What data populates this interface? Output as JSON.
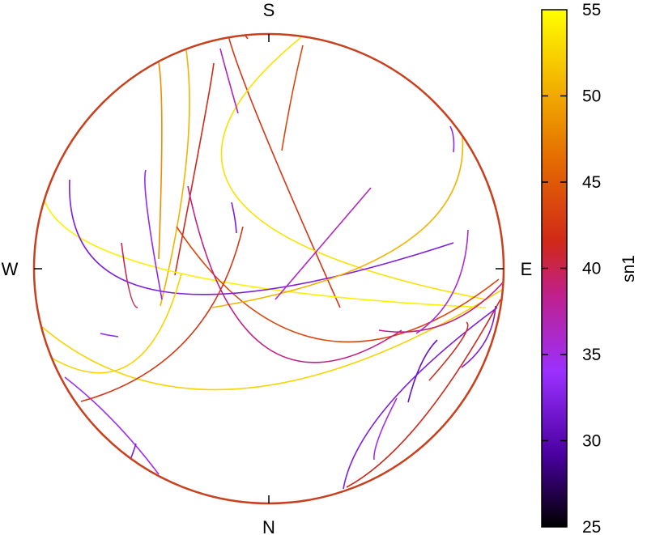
{
  "chart_data": {
    "type": "stereonet",
    "directions": {
      "top": "S",
      "bottom": "N",
      "left": "W",
      "right": "E"
    },
    "colorbar": {
      "label": "sn1",
      "min": 25,
      "max": 55,
      "ticks": [
        "55",
        "50",
        "45",
        "40",
        "35",
        "30",
        "25"
      ],
      "tick_values": [
        55,
        50,
        45,
        40,
        35,
        30,
        25
      ],
      "colormap": [
        "#000000",
        "#4a00a0",
        "#9b30ff",
        "#c0208a",
        "#d02818",
        "#e67000",
        "#f5c000",
        "#ffff00"
      ]
    },
    "arcs": [
      {
        "id": "a1",
        "from": [
          178,
          86
        ],
        "via": [
          198,
          95
        ],
        "to": [
          196,
          320
        ],
        "value": 48
      },
      {
        "id": "a2",
        "from": [
          52,
          404
        ],
        "via": [
          300,
          480
        ],
        "to": [
          625,
          355
        ],
        "value": 52
      },
      {
        "id": "a3",
        "from": [
          230,
          62
        ],
        "via": [
          230,
          200
        ],
        "to": [
          198,
          378
        ],
        "value": 50
      },
      {
        "id": "a4",
        "from": [
          264,
          78
        ],
        "via": [
          250,
          160
        ],
        "to": [
          216,
          340
        ],
        "value": 42
      },
      {
        "id": "a5",
        "from": [
          306,
          48
        ],
        "via": [
          290,
          70
        ],
        "to": [
          420,
          380
        ],
        "value": 43
      },
      {
        "id": "a6",
        "from": [
          372,
          46
        ],
        "via": [
          290,
          240
        ],
        "to": [
          600,
          370
        ],
        "value": 53
      },
      {
        "id": "a7",
        "from": [
          118,
          130
        ],
        "via": [
          110,
          300
        ],
        "to": [
          600,
          380
        ],
        "value": 54
      },
      {
        "id": "a8",
        "from": [
          218,
          280
        ],
        "via": [
          400,
          420
        ],
        "to": [
          616,
          345
        ],
        "value": 44
      },
      {
        "id": "a9",
        "from": [
          86,
          222
        ],
        "via": [
          200,
          360
        ],
        "to": [
          560,
          300
        ],
        "value": 32
      },
      {
        "id": "a10",
        "from": [
          571,
          168
        ],
        "via": [
          500,
          300
        ],
        "to": [
          262,
          380
        ],
        "value": 50
      },
      {
        "id": "a11",
        "from": [
          80,
          466
        ],
        "via": [
          140,
          520
        ],
        "to": [
          196,
          586
        ],
        "value": 34
      },
      {
        "id": "a12",
        "from": [
          100,
          496
        ],
        "via": [
          230,
          420
        ],
        "to": [
          300,
          280
        ],
        "value": 43
      },
      {
        "id": "a13",
        "from": [
          60,
          440
        ],
        "via": [
          160,
          450
        ],
        "to": [
          224,
          338
        ],
        "value": 52
      },
      {
        "id": "a14",
        "from": [
          622,
          348
        ],
        "via": [
          550,
          400
        ],
        "to": [
          468,
          408
        ],
        "value": 38
      },
      {
        "id": "a15",
        "from": [
          618,
          370
        ],
        "via": [
          520,
          520
        ],
        "to": [
          428,
          602
        ],
        "value": 42
      },
      {
        "id": "a16",
        "from": [
          424,
          604
        ],
        "via": [
          480,
          500
        ],
        "to": [
          614,
          380
        ],
        "value": 32
      },
      {
        "id": "a17",
        "from": [
          348,
          186
        ],
        "via": [
          360,
          120
        ],
        "to": [
          374,
          56
        ],
        "value": 44
      },
      {
        "id": "a18",
        "from": [
          232,
          230
        ],
        "via": [
          330,
          430
        ],
        "to": [
          496,
          408
        ],
        "value": 38
      },
      {
        "id": "a19",
        "from": [
          170,
          380
        ],
        "via": [
          160,
          360
        ],
        "to": [
          150,
          300
        ],
        "value": 40
      },
      {
        "id": "a20",
        "from": [
          272,
          60
        ],
        "via": [
          280,
          90
        ],
        "to": [
          294,
          140
        ],
        "value": 36
      },
      {
        "id": "a21",
        "from": [
          180,
          210
        ],
        "via": [
          182,
          260
        ],
        "to": [
          200,
          370
        ],
        "value": 33
      },
      {
        "id": "a22",
        "from": [
          540,
          420
        ],
        "via": [
          520,
          450
        ],
        "to": [
          504,
          497
        ],
        "value": 31
      },
      {
        "id": "a23",
        "from": [
          576,
          398
        ],
        "via": [
          570,
          420
        ],
        "to": [
          530,
          470
        ],
        "value": 42
      },
      {
        "id": "a24",
        "from": [
          458,
          232
        ],
        "via": [
          400,
          300
        ],
        "to": [
          340,
          370
        ],
        "value": 36
      },
      {
        "id": "a25",
        "from": [
          578,
          284
        ],
        "via": [
          560,
          360
        ],
        "to": [
          514,
          412
        ],
        "value": 35
      },
      {
        "id": "a26",
        "from": [
          612,
          378
        ],
        "via": [
          600,
          420
        ],
        "to": [
          570,
          454
        ],
        "value": 32
      },
      {
        "id": "a27",
        "from": [
          556,
          156
        ],
        "via": [
          560,
          170
        ],
        "to": [
          560,
          188
        ],
        "value": 33
      },
      {
        "id": "a28",
        "from": [
          286,
          250
        ],
        "via": [
          290,
          270
        ],
        "to": [
          292,
          288
        ],
        "value": 32
      },
      {
        "id": "a29",
        "from": [
          124,
          412
        ],
        "via": [
          134,
          414
        ],
        "to": [
          146,
          416
        ],
        "value": 33
      },
      {
        "id": "a30",
        "from": [
          168,
          548
        ],
        "via": [
          164,
          560
        ],
        "to": [
          160,
          570
        ],
        "value": 32
      },
      {
        "id": "a31",
        "from": [
          462,
          568
        ],
        "via": [
          468,
          540
        ],
        "to": [
          490,
          492
        ],
        "value": 34
      }
    ]
  }
}
